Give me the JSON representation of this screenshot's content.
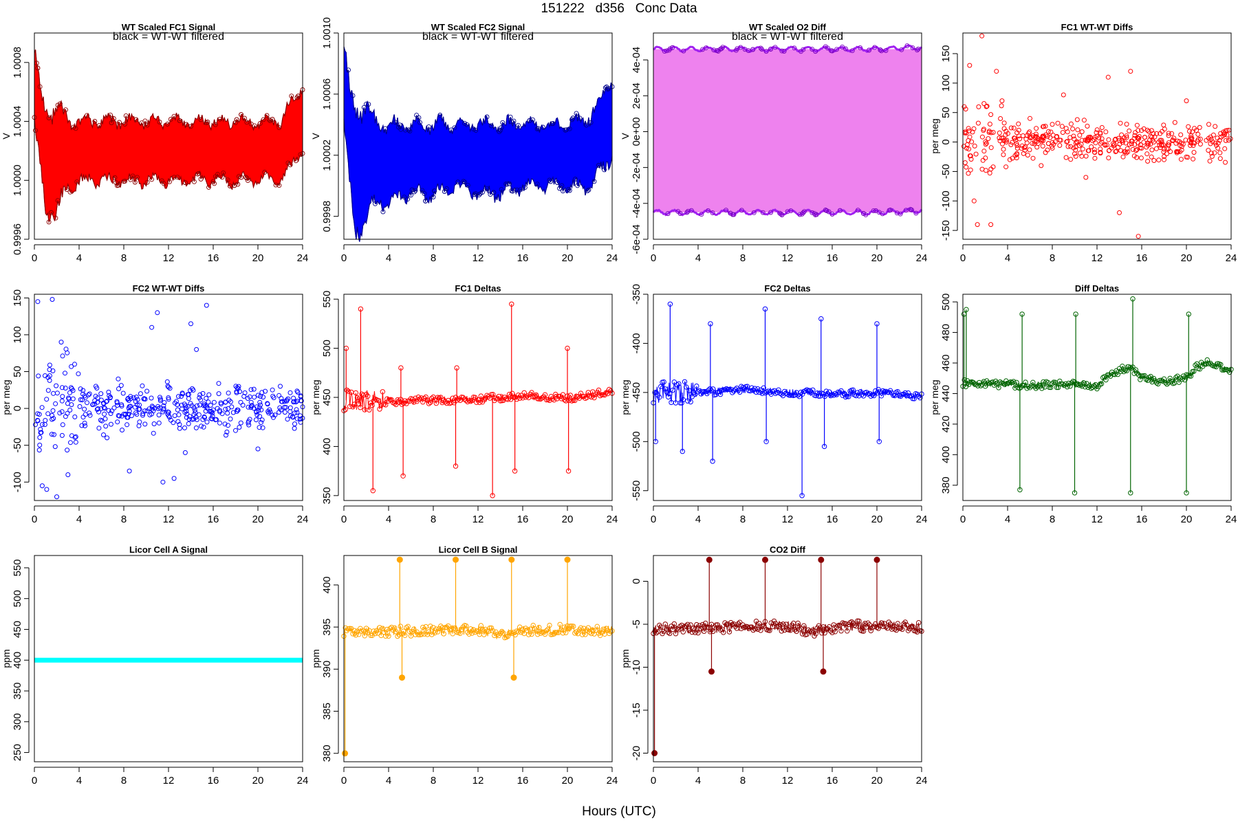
{
  "page": {
    "title": "151222   d356   Conc Data",
    "xlabel": "Hours (UTC)"
  },
  "colors": {
    "red": "#ff0000",
    "blue": "#0000ff",
    "purple": "#a020f0",
    "violet": "#ee82ee",
    "green": "#006400",
    "cyan": "#00ffff",
    "orange": "#ffa500",
    "darkred": "#8b0000",
    "darkpurple": "#7a00c0"
  },
  "chart_data": [
    {
      "id": "p1",
      "type": "line",
      "title": "WT Scaled FC1 Signal",
      "subtitle": "black = WT-WT filtered",
      "ylabel": "V",
      "xlim": [
        0,
        24
      ],
      "ylim": [
        0.9996,
        1.001
      ],
      "yticks": [
        0.9996,
        1.0,
        1.0004,
        1.0008
      ],
      "ytick_labels": [
        "0.9996",
        "1.0000",
        "1.0004",
        "1.0008"
      ],
      "xticks": [
        0,
        4,
        8,
        12,
        16,
        20,
        24
      ],
      "color": "#ff0000",
      "series": [
        {
          "name": "upper envelope",
          "x": [
            0,
            0.5,
            1,
            2,
            3,
            4,
            6,
            8,
            10,
            12,
            14,
            16,
            18,
            20,
            22,
            24
          ],
          "values": [
            1.0009,
            1.0006,
            1.00045,
            1.0005,
            1.0004,
            1.0004,
            1.0004,
            1.0004,
            1.0004,
            1.0004,
            1.0004,
            1.0004,
            1.0004,
            1.0004,
            1.0004,
            1.00065
          ]
        },
        {
          "name": "lower envelope",
          "x": [
            0,
            0.5,
            1,
            2,
            3,
            4,
            6,
            8,
            10,
            12,
            14,
            16,
            18,
            20,
            22,
            24
          ],
          "values": [
            1.0004,
            1.0001,
            0.9998,
            0.9998,
            0.99995,
            1.0,
            1.0,
            1.0,
            1.0,
            1.0,
            1.0,
            1.0,
            1.0,
            1.0,
            1.0,
            1.0002
          ]
        }
      ]
    },
    {
      "id": "p2",
      "type": "line",
      "title": "WT Scaled FC2 Signal",
      "subtitle": "black = WT-WT filtered",
      "ylabel": "V",
      "xlim": [
        0,
        24
      ],
      "ylim": [
        0.99965,
        1.001
      ],
      "yticks": [
        0.9998,
        1.0002,
        1.0006,
        1.001
      ],
      "ytick_labels": [
        "0.9998",
        "1.0002",
        "1.0006",
        "1.0010"
      ],
      "xticks": [
        0,
        4,
        8,
        12,
        16,
        20,
        24
      ],
      "color": "#0000ff",
      "series": [
        {
          "name": "upper envelope",
          "x": [
            0,
            0.5,
            1,
            2,
            3,
            4,
            6,
            8,
            10,
            12,
            14,
            16,
            18,
            20,
            22,
            24
          ],
          "values": [
            1.00095,
            1.0006,
            1.0005,
            1.0005,
            1.0004,
            1.0004,
            1.0004,
            1.0004,
            1.0004,
            1.0004,
            1.0004,
            1.0004,
            1.0004,
            1.0004,
            1.00045,
            1.0007
          ]
        },
        {
          "name": "lower envelope",
          "x": [
            0,
            0.5,
            1,
            2,
            3,
            4,
            6,
            8,
            10,
            12,
            14,
            16,
            18,
            20,
            22,
            24
          ],
          "values": [
            1.0004,
            1.0,
            0.9997,
            0.9998,
            0.9999,
            0.9999,
            0.99995,
            0.99995,
            1.0,
            0.99995,
            0.99995,
            1.0,
            1.0,
            1.0,
            1.0,
            1.0002
          ]
        }
      ]
    },
    {
      "id": "p3",
      "type": "line",
      "title": "WT Scaled O2 Diff",
      "subtitle": "black = WT-WT filtered",
      "ylabel": "V",
      "xlim": [
        0,
        24
      ],
      "ylim": [
        -0.0006,
        0.00055
      ],
      "yticks": [
        -0.0006,
        -0.0004,
        -0.0002,
        0.0,
        0.0002,
        0.0004
      ],
      "ytick_labels": [
        "-6e-04",
        "-4e-04",
        "-2e-04",
        "0e+00",
        "2e-04",
        "4e-04"
      ],
      "xticks": [
        0,
        4,
        8,
        12,
        16,
        20,
        24
      ],
      "color": "#ee82ee",
      "series": [
        {
          "name": "upper band",
          "x": [
            0,
            4,
            8,
            12,
            16,
            20,
            24
          ],
          "values": [
            0.00046,
            0.00046,
            0.00046,
            0.00046,
            0.00046,
            0.00046,
            0.00047
          ]
        },
        {
          "name": "lower band",
          "x": [
            0,
            4,
            8,
            12,
            16,
            20,
            24
          ],
          "values": [
            -0.00045,
            -0.00045,
            -0.00045,
            -0.00045,
            -0.00045,
            -0.00045,
            -0.00044
          ]
        }
      ]
    },
    {
      "id": "p4",
      "type": "scatter",
      "title": "FC1 WT-WT Diffs",
      "ylabel": "per meg",
      "xlim": [
        0,
        24
      ],
      "ylim": [
        -165,
        185
      ],
      "yticks": [
        -150,
        -100,
        -50,
        0,
        50,
        100,
        150
      ],
      "ytick_labels": [
        "-150",
        "-100",
        "-50",
        "0",
        "50",
        "100",
        "150"
      ],
      "xticks": [
        0,
        4,
        8,
        12,
        16,
        20,
        24
      ],
      "color": "#ff0000",
      "series": [
        {
          "name": "diffs",
          "x": [
            0.2,
            0.6,
            1.0,
            1.3,
            1.7,
            2.1,
            2.5,
            3.0,
            3.5,
            4.2,
            5.0,
            6.0,
            7.0,
            8.0,
            9.0,
            10.0,
            11.0,
            12.0,
            13.0,
            14.0,
            15.0,
            15.7,
            16.5,
            18.0,
            20.0,
            22.0,
            23.8
          ],
          "values": [
            -35,
            130,
            -100,
            -140,
            180,
            60,
            -140,
            120,
            70,
            -30,
            20,
            40,
            -40,
            30,
            80,
            -20,
            -60,
            10,
            110,
            -120,
            120,
            -160,
            20,
            -30,
            70,
            30,
            20
          ]
        }
      ]
    },
    {
      "id": "p5",
      "type": "scatter",
      "title": "FC2 WT-WT Diffs",
      "ylabel": "per meg",
      "xlim": [
        0,
        24
      ],
      "ylim": [
        -125,
        155
      ],
      "yticks": [
        -100,
        -50,
        0,
        50,
        100,
        150
      ],
      "ytick_labels": [
        "-100",
        "-50",
        "0",
        "50",
        "100",
        "150"
      ],
      "xticks": [
        0,
        4,
        8,
        12,
        16,
        20,
        24
      ],
      "color": "#0000ff",
      "series": [
        {
          "name": "diffs",
          "x": [
            0.3,
            0.7,
            1.1,
            1.6,
            2.0,
            2.4,
            3.0,
            3.6,
            4.5,
            5.5,
            6.5,
            7.5,
            8.5,
            9.5,
            10.5,
            11.0,
            11.5,
            12.5,
            13.5,
            14.0,
            14.5,
            15.4,
            16.5,
            18.0,
            20.0,
            22.0,
            23.5
          ],
          "values": [
            145,
            -105,
            -110,
            148,
            -120,
            90,
            -90,
            60,
            -20,
            30,
            -40,
            40,
            -85,
            20,
            110,
            130,
            -100,
            -95,
            -60,
            115,
            80,
            140,
            20,
            -30,
            -55,
            30,
            10
          ]
        }
      ]
    },
    {
      "id": "p6",
      "type": "line",
      "title": "FC1 Deltas",
      "ylabel": "per meg",
      "xlim": [
        0,
        24
      ],
      "ylim": [
        345,
        555
      ],
      "yticks": [
        350,
        400,
        450,
        500,
        550
      ],
      "ytick_labels": [
        "350",
        "400",
        "450",
        "500",
        "550"
      ],
      "xticks": [
        0,
        4,
        8,
        12,
        16,
        20,
        24
      ],
      "color": "#ff0000",
      "series": [
        {
          "name": "baseline",
          "x": [
            0,
            4,
            8,
            12,
            16,
            20,
            24
          ],
          "values": [
            447,
            446,
            447,
            448,
            452,
            449,
            456
          ]
        },
        {
          "name": "spikes",
          "x": [
            0.2,
            1.5,
            2.6,
            5.1,
            5.3,
            10.0,
            10.1,
            13.3,
            15.0,
            15.3,
            20.0,
            20.1
          ],
          "values": [
            500,
            540,
            355,
            480,
            370,
            380,
            480,
            350,
            545,
            375,
            500,
            375
          ]
        }
      ]
    },
    {
      "id": "p7",
      "type": "line",
      "title": "FC2 Deltas",
      "ylabel": "per meg",
      "xlim": [
        0,
        24
      ],
      "ylim": [
        -560,
        -350
      ],
      "yticks": [
        -550,
        -500,
        -450,
        -400,
        -350
      ],
      "ytick_labels": [
        "-550",
        "-500",
        "-450",
        "-400",
        "-350"
      ],
      "xticks": [
        0,
        4,
        8,
        12,
        16,
        20,
        24
      ],
      "color": "#0000ff",
      "series": [
        {
          "name": "baseline",
          "x": [
            0,
            4,
            8,
            12,
            16,
            20,
            24
          ],
          "values": [
            -450,
            -450,
            -447,
            -450,
            -452,
            -450,
            -455
          ]
        },
        {
          "name": "spikes",
          "x": [
            0.2,
            1.5,
            2.6,
            5.1,
            5.3,
            10.0,
            10.1,
            13.3,
            15.0,
            15.3,
            20.0,
            20.2
          ],
          "values": [
            -500,
            -360,
            -510,
            -380,
            -520,
            -365,
            -500,
            -555,
            -375,
            -505,
            -380,
            -500
          ]
        }
      ]
    },
    {
      "id": "p8",
      "type": "line",
      "title": "Diff Deltas",
      "ylabel": "per meg",
      "xlim": [
        0,
        24
      ],
      "ylim": [
        370,
        505
      ],
      "yticks": [
        380,
        400,
        420,
        440,
        460,
        480,
        500
      ],
      "ytick_labels": [
        "380",
        "400",
        "420",
        "440",
        "460",
        "480",
        "500"
      ],
      "xticks": [
        0,
        4,
        8,
        12,
        16,
        20,
        24
      ],
      "color": "#006400",
      "series": [
        {
          "name": "baseline",
          "x": [
            0,
            2,
            4,
            6,
            8,
            10,
            12,
            13,
            14,
            15,
            16,
            18,
            20,
            21,
            22,
            24
          ],
          "values": [
            447,
            446,
            446,
            445,
            446,
            447,
            445,
            452,
            455,
            458,
            450,
            448,
            450,
            458,
            460,
            455
          ]
        },
        {
          "name": "spikes",
          "x": [
            0.1,
            0.3,
            5.1,
            5.3,
            10.0,
            10.1,
            15.0,
            15.2,
            20.0,
            20.2
          ],
          "values": [
            492,
            495,
            377,
            492,
            375,
            492,
            375,
            502,
            375,
            492
          ]
        }
      ]
    },
    {
      "id": "p9",
      "type": "line",
      "title": "Licor Cell A Signal",
      "ylabel": "ppm",
      "xlim": [
        0,
        24
      ],
      "ylim": [
        235,
        570
      ],
      "yticks": [
        250,
        300,
        350,
        400,
        450,
        500,
        550
      ],
      "ytick_labels": [
        "250",
        "300",
        "350",
        "400",
        "450",
        "500",
        "550"
      ],
      "xticks": [
        0,
        4,
        8,
        12,
        16,
        20,
        24
      ],
      "color": "#00ffff",
      "series": [
        {
          "name": "signal",
          "x": [
            0,
            24
          ],
          "values": [
            400,
            400
          ]
        }
      ]
    },
    {
      "id": "p10",
      "type": "line",
      "title": "Licor Cell B Signal",
      "ylabel": "ppm",
      "xlim": [
        0,
        24
      ],
      "ylim": [
        379,
        403.5
      ],
      "yticks": [
        380,
        385,
        390,
        395,
        400
      ],
      "ytick_labels": [
        "380",
        "385",
        "390",
        "395",
        "400"
      ],
      "xticks": [
        0,
        4,
        8,
        12,
        16,
        20,
        24
      ],
      "color": "#ffa500",
      "series": [
        {
          "name": "baseline",
          "x": [
            0,
            4,
            8,
            10,
            12,
            13,
            14,
            16,
            18,
            20,
            22,
            24
          ],
          "values": [
            394.5,
            394.5,
            394.5,
            394.7,
            394.7,
            394.5,
            394.0,
            394.5,
            394.7,
            394.7,
            394.6,
            394.6
          ]
        },
        {
          "name": "spikes",
          "x": [
            0.1,
            5.0,
            5.2,
            10.0,
            15.0,
            15.2,
            20.0
          ],
          "values": [
            380,
            403,
            389,
            403,
            403,
            389,
            403
          ]
        }
      ]
    },
    {
      "id": "p11",
      "type": "line",
      "title": "CO2 Diff",
      "ylabel": "ppm",
      "xlim": [
        0,
        24
      ],
      "ylim": [
        -21,
        3
      ],
      "yticks": [
        -20,
        -15,
        -10,
        -5,
        0
      ],
      "ytick_labels": [
        "-20",
        "-15",
        "-10",
        "-5",
        "0"
      ],
      "xticks": [
        0,
        4,
        8,
        12,
        16,
        20,
        24
      ],
      "color": "#8b0000",
      "series": [
        {
          "name": "baseline",
          "x": [
            0,
            4,
            8,
            10,
            12,
            13,
            14,
            16,
            18,
            20,
            22,
            24
          ],
          "values": [
            -5.5,
            -5.5,
            -5.3,
            -5.2,
            -5.2,
            -5.4,
            -5.9,
            -5.4,
            -5.2,
            -5.3,
            -5.3,
            -5.4
          ]
        },
        {
          "name": "spikes",
          "x": [
            0.1,
            5.0,
            5.2,
            10.0,
            15.0,
            15.2,
            20.0
          ],
          "values": [
            -20,
            2.5,
            -10.5,
            2.5,
            2.5,
            -10.5,
            2.5
          ]
        }
      ]
    }
  ]
}
